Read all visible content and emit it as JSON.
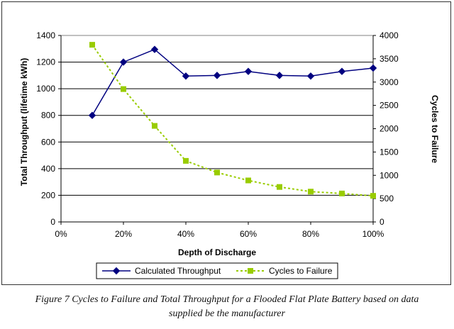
{
  "chart_data": {
    "type": "line",
    "x": [
      10,
      20,
      30,
      40,
      50,
      60,
      70,
      80,
      90,
      100
    ],
    "xlabel": "Depth of Discharge",
    "xlim": [
      0,
      100
    ],
    "xticks": [
      "0%",
      "20%",
      "40%",
      "60%",
      "80%",
      "100%"
    ],
    "ylabel": "Total Throughput  (lifetime kWh)",
    "ylim": [
      0,
      1400
    ],
    "yticks": [
      "0",
      "200",
      "400",
      "600",
      "800",
      "1000",
      "1200",
      "1400"
    ],
    "y2label": "Cycles to Failure",
    "y2lim": [
      0,
      4000
    ],
    "y2ticks": [
      "0",
      "500",
      "1000",
      "1500",
      "2000",
      "2500",
      "3000",
      "3500",
      "4000"
    ],
    "grid": "horizontal",
    "legend_position": "bottom",
    "series": [
      {
        "name": "Calculated Throughput",
        "axis": "left",
        "color": "#000080",
        "marker": "diamond",
        "values": [
          800,
          1200,
          1295,
          1095,
          1100,
          1130,
          1100,
          1095,
          1130,
          1155
        ]
      },
      {
        "name": "Cycles to Failure",
        "axis": "right",
        "color": "#99CC00",
        "marker": "square",
        "dashed": true,
        "values": [
          3800,
          2850,
          2060,
          1310,
          1060,
          890,
          750,
          650,
          610,
          560
        ]
      }
    ]
  },
  "caption": {
    "line1": "Figure 7 Cycles to Failure and Total Throughput for a Flooded Flat Plate Battery based on data",
    "line2": "supplied be the manufacturer"
  }
}
